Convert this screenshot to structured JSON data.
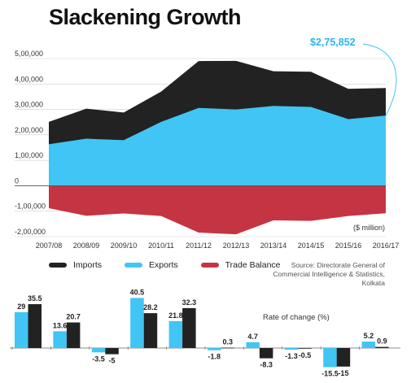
{
  "title": "Slackening Growth",
  "callout": "$2,75,852",
  "unit_note": "($ million)",
  "legend": [
    {
      "label": "Imports",
      "color": "#222222"
    },
    {
      "label": "Exports",
      "color": "#41c5f4"
    },
    {
      "label": "Trade Balance",
      "color": "#c43442"
    }
  ],
  "source": [
    "Source: Directorate General of",
    "Commercial Intelligence & Statistics,",
    "Kolkata"
  ],
  "rate_label": "Rate of change (%)",
  "chart_data": [
    {
      "type": "area",
      "categories": [
        "2007/08",
        "2008/09",
        "2009/10",
        "2010/11",
        "2011/12",
        "2012/13",
        "2013/14",
        "2014/15",
        "2015/16",
        "2016/17"
      ],
      "series": [
        {
          "name": "Imports",
          "values": [
            251000,
            303000,
            288000,
            370000,
            490000,
            491000,
            450000,
            448000,
            381000,
            384000
          ]
        },
        {
          "name": "Exports",
          "values": [
            163000,
            185000,
            179000,
            251000,
            306000,
            300000,
            314000,
            310000,
            262000,
            275852
          ]
        },
        {
          "name": "Trade Balance",
          "values": [
            -88000,
            -118000,
            -109000,
            -119000,
            -184000,
            -191000,
            -136000,
            -138000,
            -119000,
            -108000
          ]
        }
      ],
      "y_ticks": [
        "5,00,000",
        "4,00,000",
        "3,00,000",
        "2,00,000",
        "1,00,000",
        "0",
        "-1,00,000",
        "-2,00,000"
      ],
      "ylim": [
        -200000,
        500000
      ],
      "grid": true
    },
    {
      "type": "bar",
      "categories": [
        "2007/08",
        "2008/09",
        "2009/10",
        "2010/11",
        "2011/12",
        "2012/13",
        "2013/14",
        "2014/15",
        "2015/16",
        "2016/17"
      ],
      "series": [
        {
          "name": "Exports",
          "values": [
            29,
            13.6,
            -3.5,
            40.5,
            21.8,
            -1.8,
            4.7,
            -1.3,
            -15.5,
            5.2
          ]
        },
        {
          "name": "Imports",
          "values": [
            35.5,
            20.7,
            -5,
            28.2,
            32.3,
            0.3,
            -8.3,
            -0.5,
            -15,
            0.9
          ]
        }
      ],
      "labels": {
        "Exports": [
          "29",
          "13.6",
          "-3.5",
          "40.5",
          "21.8",
          "-1.8",
          "4.7",
          "-1.3",
          "-15.5",
          "5.2"
        ],
        "Imports": [
          "35.5",
          "20.7",
          "-5",
          "28.2",
          "32.3",
          "0.3",
          "-8.3",
          "-0.5",
          "-15",
          "0.9"
        ]
      }
    }
  ]
}
